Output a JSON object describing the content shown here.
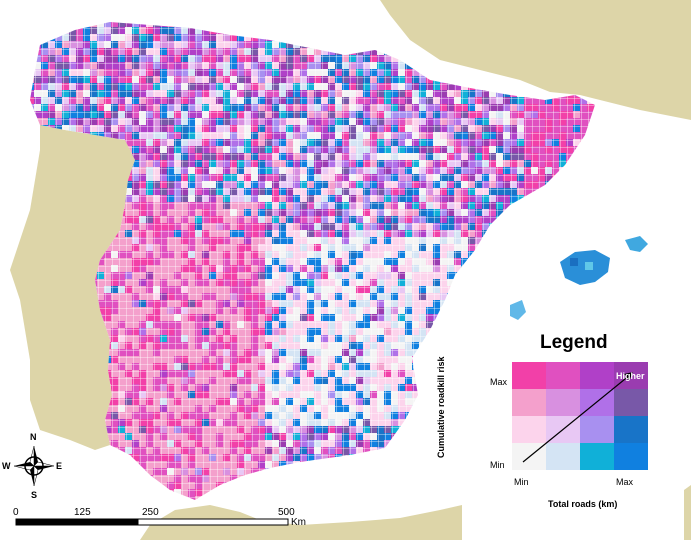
{
  "map": {
    "colors": {
      "sea": "#ffffff",
      "land_outside": "#ddd5a8",
      "grid_line": "#ffffff"
    }
  },
  "legend": {
    "title": "Legend",
    "y_axis_label": "Cumulative roadkill risk",
    "x_axis_label": "Total roads (km)",
    "y_max": "Max",
    "y_min": "Min",
    "x_min": "Min",
    "x_max": "Max",
    "higher_label": "Higher",
    "matrix": [
      [
        "#f240a8",
        "#e050c0",
        "#b040c8",
        "#9a3cb0"
      ],
      [
        "#f4a0cc",
        "#d890e0",
        "#b070e8",
        "#7858a8"
      ],
      [
        "#fcd4ec",
        "#e8c8f4",
        "#a890f0",
        "#1874c8"
      ],
      [
        "#f4f4f4",
        "#d4e4f4",
        "#10b0d8",
        "#1080e0"
      ]
    ]
  },
  "compass": {
    "n": "N",
    "s": "S",
    "e": "E",
    "w": "W"
  },
  "scale_bar": {
    "ticks": [
      "0",
      "125",
      "250",
      "500"
    ],
    "unit": "Km"
  }
}
